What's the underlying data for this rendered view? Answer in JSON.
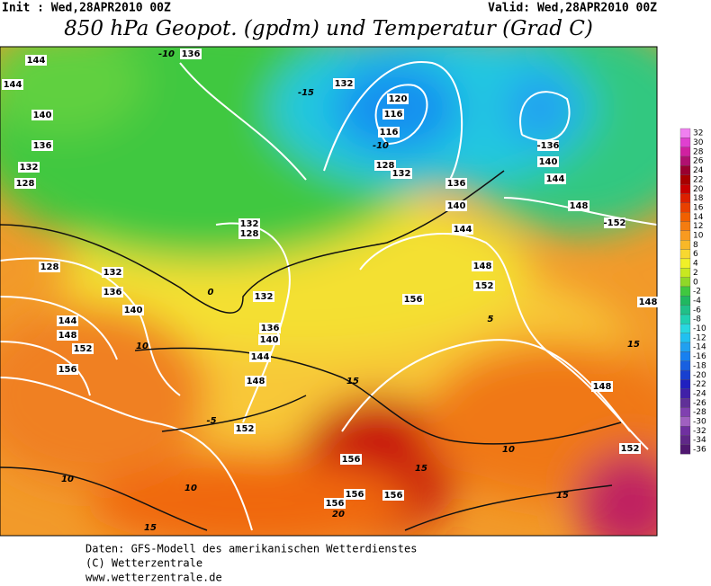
{
  "header": {
    "init": "Init : Wed,28APR2010 00Z",
    "valid": "Valid: Wed,28APR2010 00Z",
    "title": "850 hPa Geopot. (gpdm) und Temperatur (Grad C)"
  },
  "colorbar": {
    "levels": [
      32,
      30,
      28,
      26,
      24,
      22,
      20,
      18,
      16,
      14,
      12,
      10,
      8,
      6,
      4,
      2,
      0,
      -2,
      -4,
      -6,
      -8,
      -10,
      -12,
      -14,
      -16,
      -18,
      -20,
      -22,
      -24,
      -26,
      -28,
      -30,
      -32,
      -34,
      -36
    ],
    "colors": [
      "#f080f0",
      "#e040d0",
      "#d020a0",
      "#b01070",
      "#9a0030",
      "#a80000",
      "#c80000",
      "#dc2000",
      "#e84000",
      "#f06000",
      "#f47c10",
      "#f89a20",
      "#f8b828",
      "#f8d830",
      "#f0f028",
      "#c8e820",
      "#90d828",
      "#40c840",
      "#20b860",
      "#20c088",
      "#20d0b0",
      "#28d8e0",
      "#20c0f0",
      "#20a0f0",
      "#1880f0",
      "#1860e0",
      "#1840d0",
      "#2020c0",
      "#4020a8",
      "#603098",
      "#8040b0",
      "#a060c0",
      "#7030a0",
      "#602888",
      "#501870"
    ]
  },
  "map": {
    "labels": [
      "144",
      "144",
      "140",
      "136",
      "132",
      "128",
      "128",
      "132",
      "136",
      "140",
      "144",
      "148",
      "152",
      "156",
      "-10",
      "136",
      "-15",
      "132",
      "120",
      "116",
      "116",
      "-10",
      "128",
      "132",
      "136",
      "140",
      "144",
      "148",
      "152",
      "156",
      "132",
      "128",
      "132",
      "136",
      "140",
      "144",
      "148",
      "152",
      "156",
      "156",
      "156",
      "156",
      "-136",
      "140",
      "144",
      "148",
      "-152",
      "148",
      "148",
      "152",
      "15",
      "15",
      "15",
      "15",
      "10",
      "10",
      "10",
      "10",
      "-5",
      "0",
      "5",
      "20",
      "15"
    ]
  },
  "footer": {
    "lines": [
      "Daten: GFS-Modell des amerikanischen Wetterdienstes",
      "(C) Wetterzentrale",
      "www.wetterzentrale.de"
    ]
  }
}
